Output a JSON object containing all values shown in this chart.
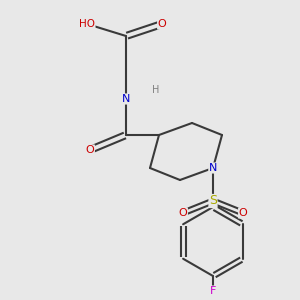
{
  "background_color": "#e8e8e8",
  "bond_color": "#3a3a3a",
  "bond_width": 1.5,
  "atom_colors": {
    "O": "#cc0000",
    "N": "#0000cc",
    "S": "#aaaa00",
    "F": "#cc00cc",
    "H": "#808080",
    "C": "#3a3a3a"
  },
  "figsize": [
    3.0,
    3.0
  ],
  "dpi": 100
}
